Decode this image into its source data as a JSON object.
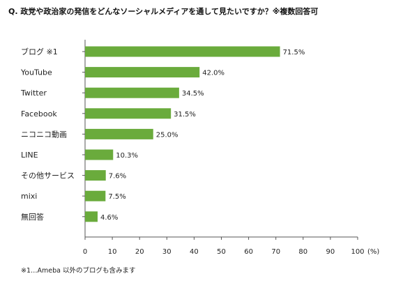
{
  "chart_data": {
    "type": "bar",
    "orientation": "horizontal",
    "title": "Q. 政党や政治家の発信をどんなソーシャルメディアを通して見たいですか？※複数回答可",
    "categories": [
      "ブログ ※1",
      "YouTube",
      "Twitter",
      "Facebook",
      "ニコニコ動画",
      "LINE",
      "その他サービス",
      "mixi",
      "無回答"
    ],
    "values": [
      71.5,
      42.0,
      34.5,
      31.5,
      25.0,
      10.3,
      7.6,
      7.5,
      4.6
    ],
    "data_labels": [
      "71.5%",
      "42.0%",
      "34.5%",
      "31.5%",
      "25.0%",
      "10.3%",
      "7.6%",
      "7.5%",
      "4.6%"
    ],
    "x_ticks": [
      0,
      10,
      20,
      30,
      40,
      50,
      60,
      70,
      80,
      90,
      100
    ],
    "x_unit": "(%)",
    "xlim": [
      0,
      100
    ],
    "grid": false,
    "bar_color": "#6aab3c",
    "footnote": "※1…Ameba 以外のブログも含みます"
  }
}
